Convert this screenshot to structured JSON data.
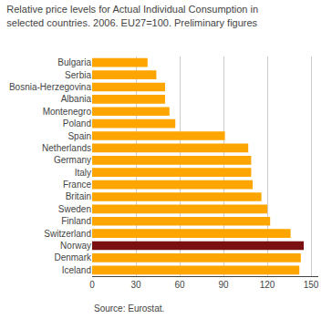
{
  "chart_data": {
    "type": "bar",
    "orientation": "horizontal",
    "title": "Relative price levels for Actual Individual Consumption in\nselected countries. 2006. EU27=100. Preliminary figures",
    "annotations": [
      "Source: Eurostat."
    ],
    "categories": [
      "Bulgaria",
      "Serbia",
      "Bosnia-Herzegovina",
      "Albania",
      "Montenegro",
      "Poland",
      "Spain",
      "Netherlands",
      "Germany",
      "Italy",
      "France",
      "Britain",
      "Sweden",
      "Finland",
      "Switzerland",
      "Norway",
      "Denmark",
      "Iceland"
    ],
    "values": [
      38,
      44,
      50,
      50,
      53,
      57,
      91,
      107,
      109,
      109,
      110,
      116,
      120,
      122,
      136,
      145,
      143,
      142
    ],
    "colors": [
      "#FFA500",
      "#FFA500",
      "#FFA500",
      "#FFA500",
      "#FFA500",
      "#FFA500",
      "#FFA500",
      "#FFA500",
      "#FFA500",
      "#FFA500",
      "#FFA500",
      "#FFA500",
      "#FFA500",
      "#FFA500",
      "#FFA500",
      "#7B1010",
      "#FFA500",
      "#FFA500"
    ],
    "xlim": [
      0,
      155
    ],
    "xticks": [
      0,
      30,
      60,
      90,
      120,
      150
    ],
    "grid": true
  }
}
